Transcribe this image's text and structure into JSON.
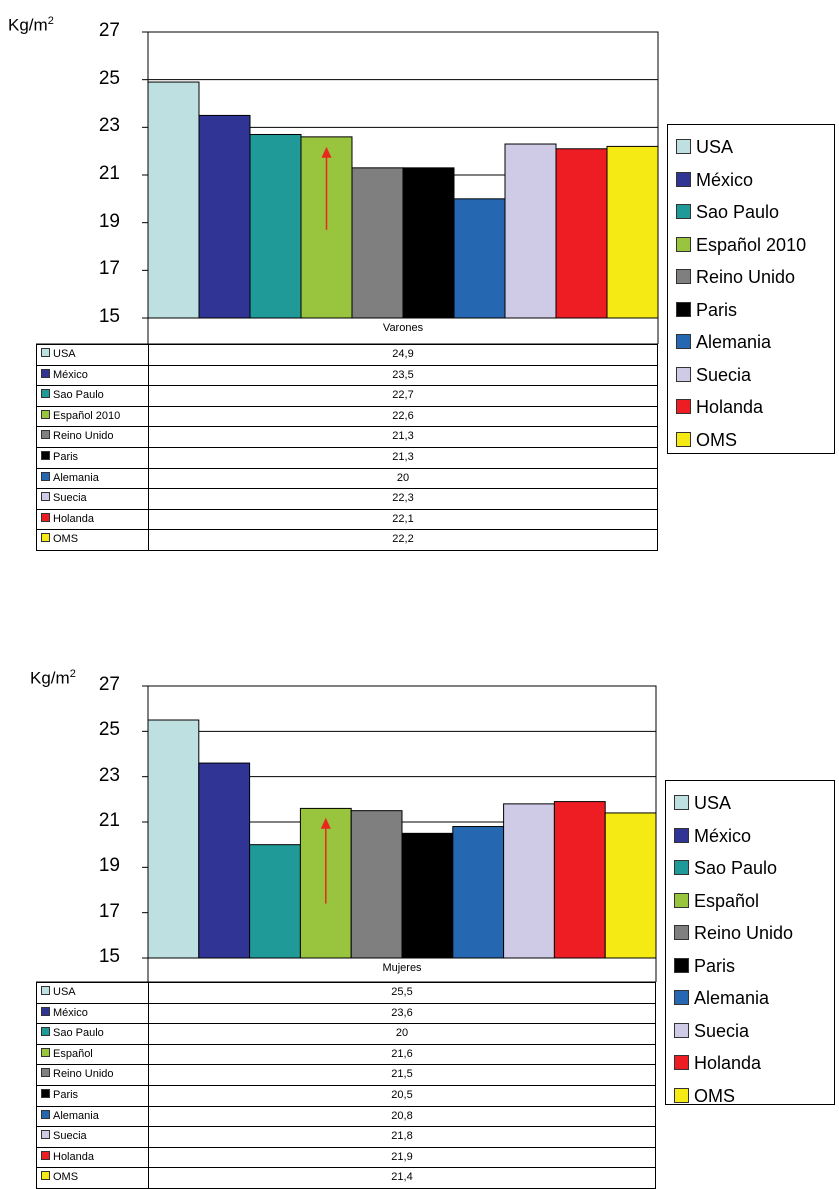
{
  "colors": {
    "USA": "#bfe0e0",
    "México": "#303494",
    "Sao Paulo": "#1f9a98",
    "Español": "#99c43e",
    "Reino Unido": "#7f7f7f",
    "Paris": "#000000",
    "Alemania": "#2567b1",
    "Suecia": "#cfcbe6",
    "Holanda": "#ee1d24",
    "OMS": "#f5ea14",
    "arrow": "#e8281e"
  },
  "chart_data": [
    {
      "type": "bar",
      "ylabel": "Kg/m",
      "ylabel_sup": "2",
      "category": "Varones",
      "ylim": [
        15,
        27
      ],
      "yticks": [
        15,
        17,
        19,
        21,
        23,
        25,
        27
      ],
      "grid": true,
      "legend": "right",
      "series": [
        {
          "name": "USA",
          "value": 24.9,
          "label": "24,9"
        },
        {
          "name": "México",
          "value": 23.5,
          "label": "23,5"
        },
        {
          "name": "Sao Paulo",
          "value": 22.7,
          "label": "22,7"
        },
        {
          "name": "Español 2010",
          "value": 22.6,
          "label": "22,6"
        },
        {
          "name": "Reino Unido",
          "value": 21.3,
          "label": "21,3"
        },
        {
          "name": "Paris",
          "value": 21.3,
          "label": "21,3"
        },
        {
          "name": "Alemania",
          "value": 20,
          "label": "20"
        },
        {
          "name": "Suecia",
          "value": 22.3,
          "label": "22,3"
        },
        {
          "name": "Holanda",
          "value": 22.1,
          "label": "22,1"
        },
        {
          "name": "OMS",
          "value": 22.2,
          "label": "22,2"
        }
      ],
      "arrow": {
        "series": "Español 2010",
        "from": 18.7,
        "to": 22.1
      }
    },
    {
      "type": "bar",
      "ylabel": "Kg/m",
      "ylabel_sup": "2",
      "category": "Mujeres",
      "ylim": [
        15,
        27
      ],
      "yticks": [
        15,
        17,
        19,
        21,
        23,
        25,
        27
      ],
      "grid": true,
      "legend": "right",
      "series": [
        {
          "name": "USA",
          "value": 25.5,
          "label": "25,5"
        },
        {
          "name": "México",
          "value": 23.6,
          "label": "23,6"
        },
        {
          "name": "Sao Paulo",
          "value": 20,
          "label": "20"
        },
        {
          "name": "Español",
          "value": 21.6,
          "label": "21,6"
        },
        {
          "name": "Reino Unido",
          "value": 21.5,
          "label": "21,5"
        },
        {
          "name": "Paris",
          "value": 20.5,
          "label": "20,5"
        },
        {
          "name": "Alemania",
          "value": 20.8,
          "label": "20,8"
        },
        {
          "name": "Suecia",
          "value": 21.8,
          "label": "21,8"
        },
        {
          "name": "Holanda",
          "value": 21.9,
          "label": "21,9"
        },
        {
          "name": "OMS",
          "value": 21.4,
          "label": "21,4"
        }
      ],
      "arrow": {
        "series": "Español",
        "from": 17.4,
        "to": 21.1
      }
    }
  ]
}
